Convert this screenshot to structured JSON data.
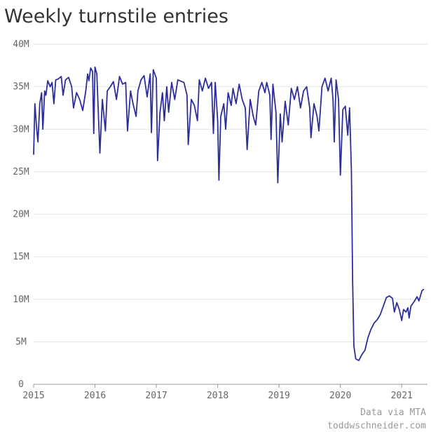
{
  "chart_data": {
    "type": "line",
    "title": "Weekly turnstile entries",
    "annotations": [
      "Data via MTA",
      "toddwschneider.com"
    ],
    "xlim": [
      2015,
      2021.42
    ],
    "xticks": [
      2015,
      2016,
      2017,
      2018,
      2019,
      2020,
      2021
    ],
    "ylim": [
      0,
      40
    ],
    "yticks": [
      0,
      {
        "value": 5,
        "label": "5M"
      },
      {
        "value": 10,
        "label": "10M"
      },
      {
        "value": 15,
        "label": "15M"
      },
      {
        "value": 20,
        "label": "20M"
      },
      {
        "value": 25,
        "label": "25M"
      },
      {
        "value": 30,
        "label": "30M"
      },
      {
        "value": 35,
        "label": "35M"
      },
      {
        "value": 40,
        "label": "40M"
      }
    ],
    "grid": true,
    "x": [
      2015.0,
      2015.02,
      2015.05,
      2015.07,
      2015.1,
      2015.13,
      2015.15,
      2015.18,
      2015.2,
      2015.23,
      2015.27,
      2015.3,
      2015.33,
      2015.36,
      2015.4,
      2015.45,
      2015.48,
      2015.52,
      2015.57,
      2015.62,
      2015.65,
      2015.7,
      2015.75,
      2015.8,
      2015.85,
      2015.88,
      2015.9,
      2015.93,
      2015.96,
      2015.98,
      2016.0,
      2016.03,
      2016.08,
      2016.12,
      2016.17,
      2016.2,
      2016.25,
      2016.3,
      2016.35,
      2016.4,
      2016.45,
      2016.5,
      2016.53,
      2016.58,
      2016.62,
      2016.67,
      2016.7,
      2016.75,
      2016.8,
      2016.85,
      2016.9,
      2016.92,
      2016.95,
      2017.0,
      2017.02,
      2017.06,
      2017.1,
      2017.13,
      2017.17,
      2017.2,
      2017.25,
      2017.3,
      2017.35,
      2017.45,
      2017.5,
      2017.52,
      2017.57,
      2017.62,
      2017.67,
      2017.7,
      2017.75,
      2017.8,
      2017.85,
      2017.9,
      2017.93,
      2017.96,
      2018.0,
      2018.02,
      2018.05,
      2018.1,
      2018.13,
      2018.17,
      2018.22,
      2018.25,
      2018.3,
      2018.35,
      2018.4,
      2018.45,
      2018.48,
      2018.53,
      2018.58,
      2018.62,
      2018.67,
      2018.72,
      2018.77,
      2018.8,
      2018.85,
      2018.87,
      2018.9,
      2018.95,
      2018.98,
      2019.02,
      2019.05,
      2019.1,
      2019.15,
      2019.2,
      2019.25,
      2019.3,
      2019.35,
      2019.4,
      2019.45,
      2019.5,
      2019.52,
      2019.57,
      2019.62,
      2019.65,
      2019.7,
      2019.75,
      2019.8,
      2019.85,
      2019.88,
      2019.9,
      2019.93,
      2019.97,
      2020.0,
      2020.04,
      2020.08,
      2020.12,
      2020.15,
      2020.18,
      2020.2,
      2020.22,
      2020.25,
      2020.3,
      2020.35,
      2020.4,
      2020.45,
      2020.5,
      2020.55,
      2020.6,
      2020.65,
      2020.7,
      2020.75,
      2020.8,
      2020.85,
      2020.88,
      2020.92,
      2020.96,
      2021.0,
      2021.03,
      2021.07,
      2021.1,
      2021.12,
      2021.15,
      2021.2,
      2021.25,
      2021.28,
      2021.33,
      2021.36
    ],
    "series": [
      {
        "color": "#2b2e9a",
        "values": [
          27,
          33,
          30,
          28.5,
          33,
          34.3,
          30,
          34.5,
          34,
          35.7,
          35,
          35.5,
          33,
          35.8,
          35.9,
          36.2,
          34,
          35.8,
          36.1,
          35,
          32.5,
          34.3,
          33.5,
          32.2,
          34.5,
          36.5,
          35.7,
          37.2,
          36.8,
          29.5,
          37.3,
          36.5,
          27.2,
          33.5,
          29.8,
          34.5,
          35,
          35.6,
          33.5,
          36.2,
          35.3,
          35.5,
          29.8,
          34.5,
          33,
          31.5,
          34.5,
          35.8,
          36.3,
          33.8,
          36.5,
          29.6,
          37,
          36,
          26.3,
          32,
          34.3,
          31,
          35,
          32,
          35.5,
          33.5,
          35.8,
          35.5,
          34,
          28.2,
          33.5,
          32.8,
          31,
          35.8,
          34.5,
          36,
          34.8,
          35.5,
          29.5,
          35.5,
          31,
          24,
          31.5,
          33,
          30,
          34.3,
          32.8,
          34.8,
          33,
          35.3,
          33.5,
          32.5,
          27.6,
          33.5,
          31.5,
          30.5,
          34.5,
          35.5,
          34.3,
          35.5,
          34,
          28.8,
          35.3,
          32,
          23.7,
          31.8,
          28.5,
          33.3,
          30.5,
          34.8,
          33.5,
          35,
          32.5,
          34.5,
          35,
          32.5,
          29,
          33,
          31.5,
          29.8,
          35,
          36,
          34.5,
          36,
          33.5,
          28.5,
          35.8,
          33.5,
          24.6,
          32.3,
          32.7,
          29.3,
          32.5,
          25,
          12,
          4.5,
          3,
          2.8,
          3.5,
          4,
          5.5,
          6.5,
          7.2,
          7.6,
          8.2,
          9.2,
          10.2,
          10.4,
          10.1,
          8.5,
          9.6,
          8.8,
          7.5,
          8.8,
          8.5,
          9,
          7.8,
          9.2,
          9.7,
          10.3,
          9.8,
          11,
          11.2
        ]
      }
    ]
  }
}
